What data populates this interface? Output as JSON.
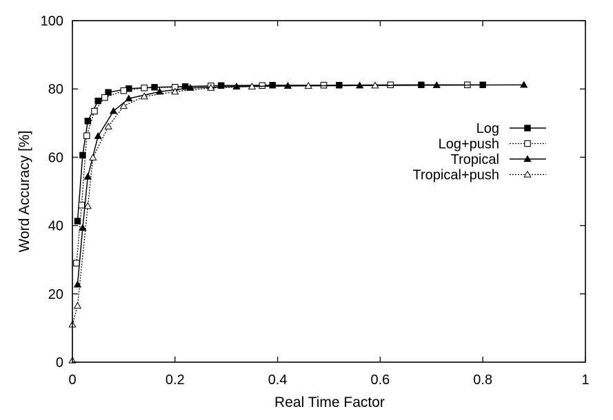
{
  "chart_data": {
    "type": "line",
    "title": "",
    "xlabel": "Real Time Factor",
    "ylabel": "Word Accuracy [%]",
    "xlim": [
      0,
      1
    ],
    "ylim": [
      0,
      100
    ],
    "xticks": [
      0,
      0.2,
      0.4,
      0.6,
      0.8,
      1
    ],
    "yticks": [
      0,
      20,
      40,
      60,
      80,
      100
    ],
    "xtick_labels": [
      "0",
      "0.2",
      "0.4",
      "0.6",
      "0.8",
      "1"
    ],
    "ytick_labels": [
      "0",
      "20",
      "40",
      "60",
      "80",
      "100"
    ],
    "grid": false,
    "legend_position": "right",
    "series": [
      {
        "name": "Log",
        "line_style": "solid",
        "marker": "filled-square",
        "x": [
          0.01,
          0.02,
          0.03,
          0.05,
          0.07,
          0.11,
          0.16,
          0.22,
          0.29,
          0.39,
          0.52,
          0.68,
          0.8
        ],
        "y": [
          41.3,
          60.6,
          70.6,
          76.5,
          79.0,
          80.1,
          80.5,
          80.7,
          81.0,
          81.1,
          81.1,
          81.2,
          81.2
        ]
      },
      {
        "name": "Log+push",
        "line_style": "dotted",
        "marker": "open-square",
        "x": [
          0.008,
          0.018,
          0.028,
          0.043,
          0.063,
          0.1,
          0.14,
          0.2,
          0.27,
          0.37,
          0.49,
          0.62,
          0.77
        ],
        "y": [
          29.0,
          46.0,
          66.3,
          73.5,
          77.5,
          79.5,
          80.3,
          80.5,
          80.9,
          81.0,
          81.1,
          81.2,
          81.2
        ]
      },
      {
        "name": "Tropical",
        "line_style": "solid",
        "marker": "filled-triangle",
        "x": [
          0.01,
          0.02,
          0.03,
          0.05,
          0.08,
          0.11,
          0.17,
          0.23,
          0.32,
          0.42,
          0.56,
          0.71,
          0.88
        ],
        "y": [
          22.7,
          39.3,
          54.3,
          66.2,
          73.5,
          77.2,
          79.2,
          80.3,
          80.7,
          80.9,
          81.0,
          81.1,
          81.2
        ]
      },
      {
        "name": "Tropical+push",
        "line_style": "dotted",
        "marker": "open-triangle",
        "x": [
          0.0,
          0.0,
          0.01,
          0.03,
          0.04,
          0.07,
          0.1,
          0.14,
          0.2,
          0.27,
          0.35,
          0.46,
          0.59
        ],
        "y": [
          0.5,
          11.0,
          16.5,
          45.7,
          59.9,
          69.0,
          75.0,
          77.8,
          79.2,
          80.3,
          80.7,
          80.9,
          81.0
        ]
      }
    ]
  }
}
